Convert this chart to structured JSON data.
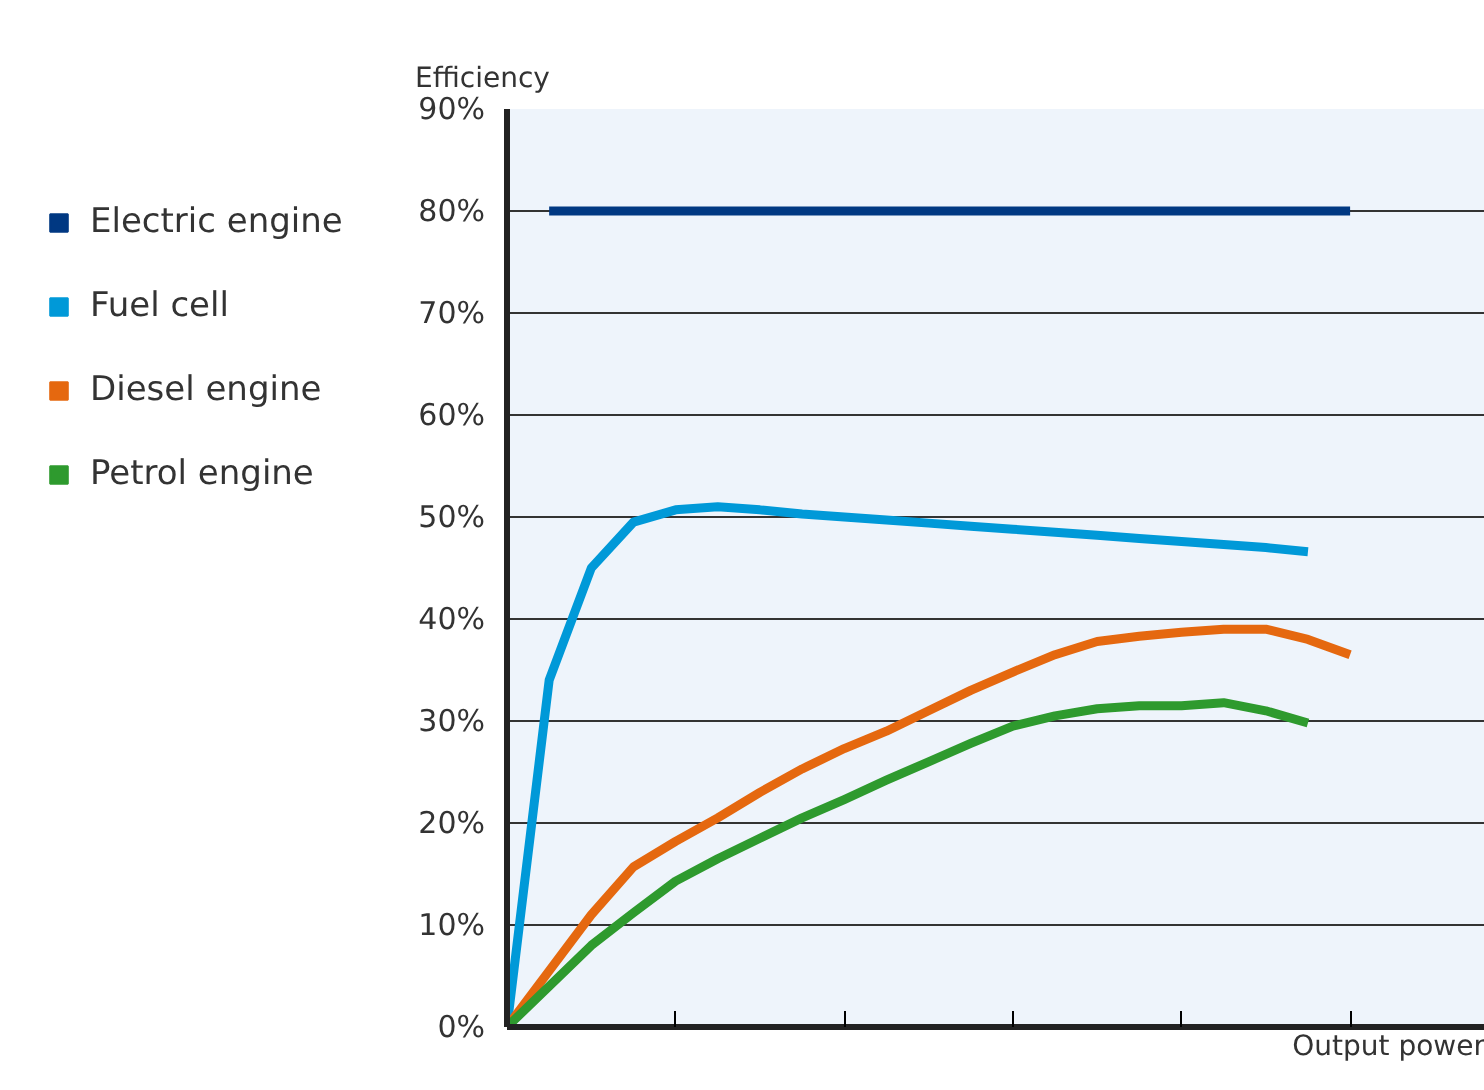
{
  "chart_data": {
    "type": "line",
    "ylabel": "Efficiency",
    "xlabel": "Output power",
    "categories": [
      null,
      null,
      null,
      null,
      null,
      null,
      null,
      null,
      null,
      null,
      null,
      null,
      null,
      null,
      null,
      null,
      null,
      null,
      null,
      null,
      null,
      null,
      null,
      null
    ],
    "series": [
      {
        "name": "Electric engine",
        "color": "#003882",
        "values": [
          null,
          80,
          80,
          80,
          80,
          80,
          80,
          80,
          80,
          80,
          80,
          80,
          80,
          80,
          80,
          80,
          80,
          80,
          80,
          80,
          80,
          null,
          null,
          null
        ]
      },
      {
        "name": "Fuel cell",
        "color": "#0099d8",
        "values": [
          0,
          34,
          45,
          49.5,
          50.7,
          51,
          50.7,
          50.3,
          50,
          49.7,
          49.4,
          49.1,
          48.8,
          48.5,
          48.2,
          47.9,
          47.6,
          47.3,
          47,
          46.6,
          null,
          null,
          null,
          null
        ]
      },
      {
        "name": "Diesel engine",
        "color": "#e5680f",
        "values": [
          0,
          5.5,
          11,
          15.7,
          18.2,
          20.5,
          23,
          25.3,
          27.3,
          29,
          31,
          33,
          34.8,
          36.5,
          37.8,
          38.3,
          38.7,
          39,
          39,
          38,
          36.5,
          null,
          null,
          null
        ]
      },
      {
        "name": "Petrol engine",
        "color": "#2e9a2e",
        "values": [
          0,
          4,
          8,
          11.2,
          14.3,
          16.5,
          18.5,
          20.5,
          22.3,
          24.2,
          26,
          27.8,
          29.5,
          30.5,
          31.2,
          31.5,
          31.5,
          31.8,
          31,
          29.8,
          null,
          null,
          null,
          null
        ]
      }
    ],
    "ylim": [
      0,
      90
    ],
    "yticks": [
      {
        "value": 0,
        "label": "0%"
      },
      {
        "value": 10,
        "label": "10%"
      },
      {
        "value": 20,
        "label": "20%"
      },
      {
        "value": 30,
        "label": "30%"
      },
      {
        "value": 40,
        "label": "40%"
      },
      {
        "value": 50,
        "label": "50%"
      },
      {
        "value": 60,
        "label": "60%"
      },
      {
        "value": 70,
        "label": "70%"
      },
      {
        "value": 80,
        "label": "80%"
      },
      {
        "value": 90,
        "label": "90%"
      }
    ],
    "grid": "y",
    "legend": "left",
    "tick_labels": "y",
    "line_style": "solid"
  }
}
